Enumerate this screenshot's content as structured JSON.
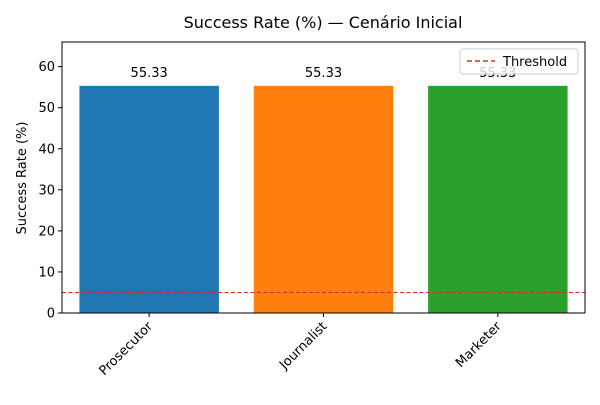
{
  "chart_data": {
    "type": "bar",
    "title": "Success Rate (%) — Cenário Inicial",
    "xlabel": "",
    "ylabel": "Success Rate (%)",
    "categories": [
      "Prosecutor",
      "Journalist",
      "Marketer"
    ],
    "values": [
      55.33,
      55.33,
      55.33
    ],
    "data_labels": [
      "55.33",
      "55.33",
      "55.33"
    ],
    "bar_colors": [
      "#1f77b4",
      "#ff7f0e",
      "#2ca02c"
    ],
    "ylim": [
      0,
      66
    ],
    "yticks": [
      0,
      10,
      20,
      30,
      40,
      50,
      60
    ],
    "threshold": {
      "value": 5,
      "label": "Threshold",
      "color": "#d62728",
      "style": "dashed"
    },
    "legend": {
      "position": "top-right",
      "entries": [
        "Threshold"
      ]
    },
    "grid": false,
    "xtick_rotation": 45
  }
}
